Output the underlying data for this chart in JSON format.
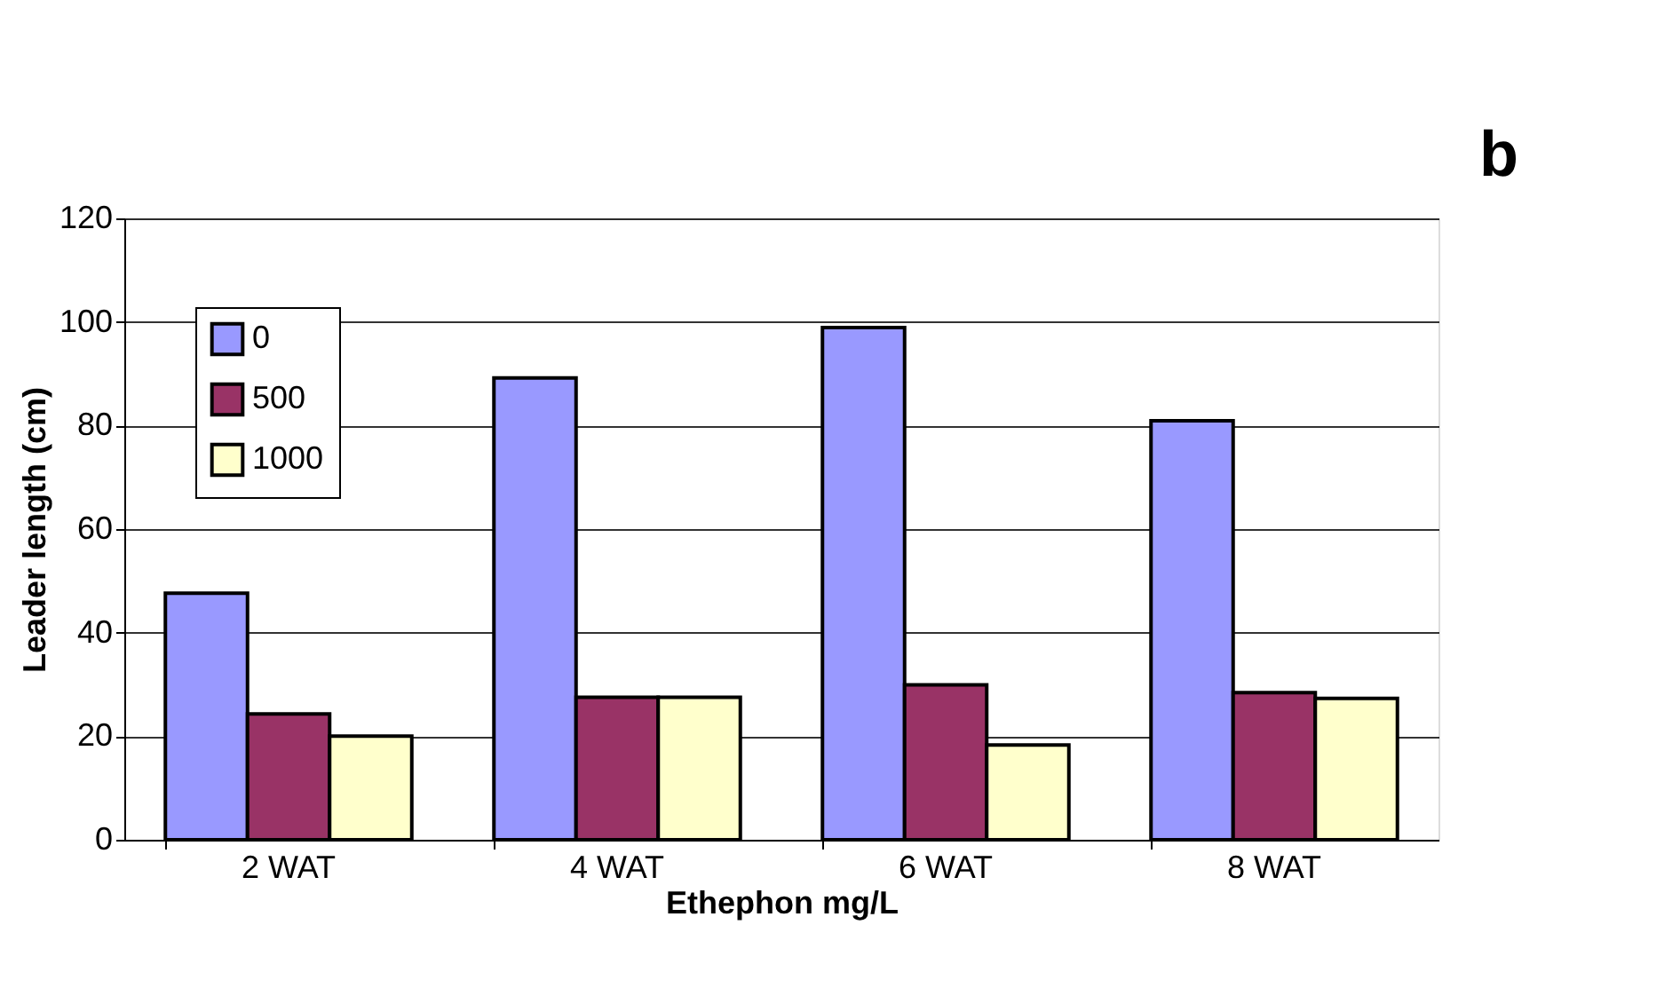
{
  "chart_data": {
    "type": "bar",
    "xlabel": "Ethephon mg/L",
    "ylabel": "Leader length (cm)",
    "categories": [
      "2 WAT",
      "4 WAT",
      "6 WAT",
      "8 WAT"
    ],
    "series": [
      {
        "name": "0",
        "color": "#9999ff",
        "values": [
          47.6,
          89.2,
          98.9,
          80.9
        ]
      },
      {
        "name": "500",
        "color": "#993366",
        "values": [
          24.3,
          27.5,
          29.9,
          28.4
        ]
      },
      {
        "name": "1000",
        "color": "#ffffcc",
        "values": [
          20.0,
          27.5,
          18.3,
          27.3
        ]
      }
    ],
    "ylim": [
      0,
      120
    ],
    "yticks": [
      0,
      20,
      40,
      60,
      80,
      100,
      120
    ],
    "grid": "y",
    "legend": "top left",
    "annotations": [
      "b"
    ]
  }
}
